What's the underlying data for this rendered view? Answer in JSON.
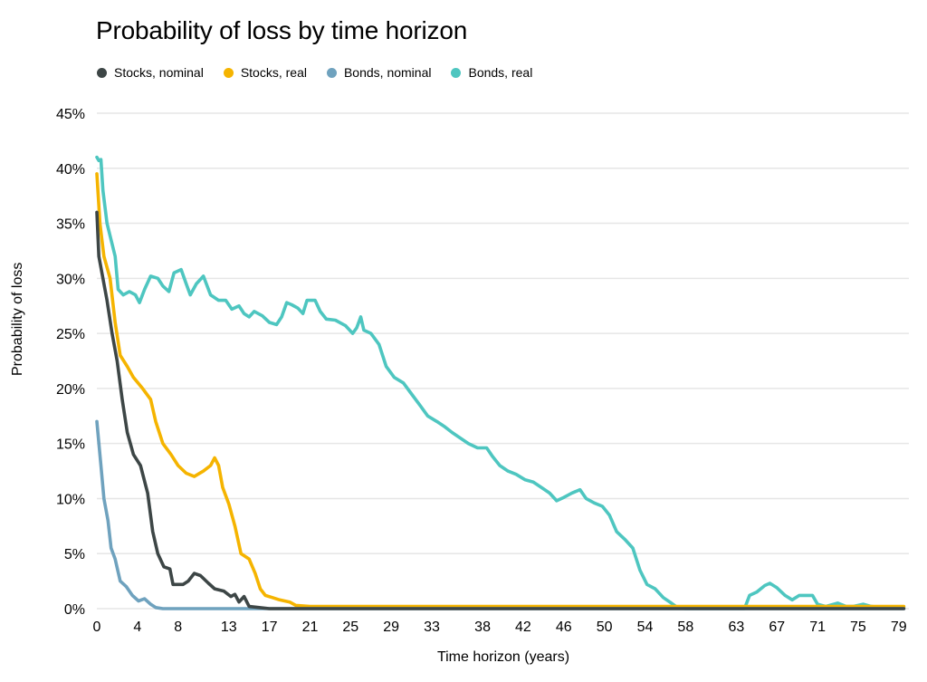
{
  "chart_data": {
    "type": "line",
    "title": "Probability of loss by time horizon",
    "xlabel": "Time horizon (years)",
    "ylabel": "Probability of loss",
    "xlim": [
      0,
      80
    ],
    "ylim": [
      0,
      45
    ],
    "x_ticks": [
      "0",
      "4",
      "8",
      "13",
      "17",
      "21",
      "25",
      "29",
      "33",
      "38",
      "42",
      "46",
      "50",
      "54",
      "58",
      "63",
      "67",
      "71",
      "75",
      "79"
    ],
    "y_ticks": [
      "0%",
      "5%",
      "10%",
      "15%",
      "20%",
      "25%",
      "30%",
      "35%",
      "40%",
      "45%"
    ],
    "grid": "horizontal",
    "legend_position": "top-left",
    "series": [
      {
        "name": "Stocks, nominal",
        "color": "#3d4646",
        "points": [
          [
            0,
            36
          ],
          [
            0.2,
            32
          ],
          [
            0.6,
            30
          ],
          [
            1,
            28
          ],
          [
            1.5,
            25
          ],
          [
            2,
            22.5
          ],
          [
            2.5,
            19
          ],
          [
            3,
            16
          ],
          [
            3.6,
            14
          ],
          [
            4.3,
            13
          ],
          [
            5,
            10.5
          ],
          [
            5.5,
            7
          ],
          [
            6,
            5
          ],
          [
            6.6,
            3.8
          ],
          [
            7.2,
            3.6
          ],
          [
            7.5,
            2.2
          ],
          [
            8.5,
            2.2
          ],
          [
            9,
            2.5
          ],
          [
            9.6,
            3.2
          ],
          [
            10.2,
            3
          ],
          [
            11,
            2.3
          ],
          [
            11.6,
            1.8
          ],
          [
            12.5,
            1.6
          ],
          [
            13.2,
            1.1
          ],
          [
            13.6,
            1.3
          ],
          [
            14,
            0.6
          ],
          [
            14.5,
            1.1
          ],
          [
            15,
            0.2
          ],
          [
            16,
            0.1
          ],
          [
            17,
            0
          ],
          [
            79.5,
            0
          ]
        ]
      },
      {
        "name": "Stocks, real",
        "color": "#f5b400",
        "points": [
          [
            0,
            39.5
          ],
          [
            0.3,
            35
          ],
          [
            0.7,
            32
          ],
          [
            1.3,
            30
          ],
          [
            1.8,
            26
          ],
          [
            2.3,
            23
          ],
          [
            3,
            22
          ],
          [
            3.6,
            21
          ],
          [
            4.5,
            20
          ],
          [
            5.3,
            19
          ],
          [
            5.8,
            17
          ],
          [
            6.5,
            15
          ],
          [
            7.3,
            14
          ],
          [
            8,
            13
          ],
          [
            8.8,
            12.3
          ],
          [
            9.6,
            12
          ],
          [
            10.5,
            12.5
          ],
          [
            11.2,
            13
          ],
          [
            11.6,
            13.7
          ],
          [
            12,
            13
          ],
          [
            12.4,
            11
          ],
          [
            13,
            9.5
          ],
          [
            13.6,
            7.5
          ],
          [
            14.2,
            5
          ],
          [
            15,
            4.5
          ],
          [
            15.6,
            3.2
          ],
          [
            16.1,
            1.8
          ],
          [
            16.6,
            1.2
          ],
          [
            17.3,
            1
          ],
          [
            18,
            0.8
          ],
          [
            19,
            0.6
          ],
          [
            19.6,
            0.3
          ],
          [
            21,
            0.2
          ],
          [
            79.5,
            0.2
          ]
        ]
      },
      {
        "name": "Bonds, nominal",
        "color": "#6fa2be",
        "points": [
          [
            0,
            17
          ],
          [
            0.4,
            13
          ],
          [
            0.7,
            10
          ],
          [
            1.1,
            8
          ],
          [
            1.4,
            5.5
          ],
          [
            1.8,
            4.5
          ],
          [
            2.3,
            2.5
          ],
          [
            2.9,
            2
          ],
          [
            3.5,
            1.2
          ],
          [
            4.1,
            0.7
          ],
          [
            4.7,
            0.9
          ],
          [
            5.3,
            0.4
          ],
          [
            5.8,
            0.1
          ],
          [
            6.5,
            0
          ],
          [
            79.5,
            0
          ]
        ]
      },
      {
        "name": "Bonds, real",
        "color": "#4ec6c0",
        "points": [
          [
            0,
            41
          ],
          [
            0.2,
            40.7
          ],
          [
            0.4,
            40.8
          ],
          [
            0.6,
            38
          ],
          [
            1,
            35
          ],
          [
            1.4,
            33.5
          ],
          [
            1.8,
            32
          ],
          [
            2.1,
            29
          ],
          [
            2.6,
            28.5
          ],
          [
            3.2,
            28.8
          ],
          [
            3.8,
            28.5
          ],
          [
            4.2,
            27.8
          ],
          [
            4.7,
            29
          ],
          [
            5.3,
            30.2
          ],
          [
            6,
            30
          ],
          [
            6.5,
            29.3
          ],
          [
            7.1,
            28.8
          ],
          [
            7.6,
            30.5
          ],
          [
            8.3,
            30.8
          ],
          [
            8.8,
            29.5
          ],
          [
            9.2,
            28.5
          ],
          [
            9.8,
            29.5
          ],
          [
            10.5,
            30.2
          ],
          [
            11.2,
            28.5
          ],
          [
            12,
            28
          ],
          [
            12.7,
            28
          ],
          [
            13.3,
            27.2
          ],
          [
            14,
            27.5
          ],
          [
            14.5,
            26.8
          ],
          [
            15,
            26.5
          ],
          [
            15.5,
            27
          ],
          [
            16.3,
            26.6
          ],
          [
            17,
            26
          ],
          [
            17.7,
            25.8
          ],
          [
            18.2,
            26.5
          ],
          [
            18.7,
            27.8
          ],
          [
            19.2,
            27.6
          ],
          [
            19.8,
            27.3
          ],
          [
            20.3,
            26.8
          ],
          [
            20.7,
            28
          ],
          [
            21.5,
            28
          ],
          [
            22,
            27
          ],
          [
            22.6,
            26.3
          ],
          [
            23.5,
            26.2
          ],
          [
            24.5,
            25.7
          ],
          [
            25.2,
            25
          ],
          [
            25.6,
            25.5
          ],
          [
            26,
            26.5
          ],
          [
            26.3,
            25.3
          ],
          [
            27,
            25
          ],
          [
            27.8,
            24
          ],
          [
            28.5,
            22
          ],
          [
            29.3,
            21
          ],
          [
            30.2,
            20.5
          ],
          [
            31,
            19.5
          ],
          [
            31.8,
            18.5
          ],
          [
            32.6,
            17.5
          ],
          [
            33.5,
            17
          ],
          [
            34.3,
            16.5
          ],
          [
            35,
            16
          ],
          [
            35.8,
            15.5
          ],
          [
            36.6,
            15
          ],
          [
            37.5,
            14.6
          ],
          [
            38.4,
            14.6
          ],
          [
            39,
            13.8
          ],
          [
            39.7,
            13
          ],
          [
            40.5,
            12.5
          ],
          [
            41.3,
            12.2
          ],
          [
            42.2,
            11.7
          ],
          [
            43,
            11.5
          ],
          [
            43.8,
            11
          ],
          [
            44.6,
            10.5
          ],
          [
            45.3,
            9.8
          ],
          [
            46,
            10.1
          ],
          [
            46.8,
            10.5
          ],
          [
            47.6,
            10.8
          ],
          [
            48.2,
            10
          ],
          [
            49,
            9.6
          ],
          [
            49.8,
            9.3
          ],
          [
            50.5,
            8.5
          ],
          [
            51.2,
            7
          ],
          [
            52,
            6.3
          ],
          [
            52.8,
            5.5
          ],
          [
            53.5,
            3.5
          ],
          [
            54.2,
            2.2
          ],
          [
            55,
            1.8
          ],
          [
            55.8,
            1
          ],
          [
            56.6,
            0.5
          ],
          [
            57.2,
            0.1
          ],
          [
            58,
            0
          ],
          [
            63.8,
            0
          ],
          [
            64.3,
            1.2
          ],
          [
            65,
            1.5
          ],
          [
            65.8,
            2.1
          ],
          [
            66.3,
            2.3
          ],
          [
            67,
            1.9
          ],
          [
            67.8,
            1.2
          ],
          [
            68.5,
            0.8
          ],
          [
            69.2,
            1.2
          ],
          [
            70.5,
            1.2
          ],
          [
            71,
            0.4
          ],
          [
            71.8,
            0.2
          ],
          [
            73,
            0.5
          ],
          [
            73.8,
            0.2
          ],
          [
            74.5,
            0.2
          ],
          [
            75.5,
            0.4
          ],
          [
            76.3,
            0.2
          ],
          [
            77.5,
            0.1
          ],
          [
            79.5,
            0.1
          ]
        ]
      }
    ]
  }
}
